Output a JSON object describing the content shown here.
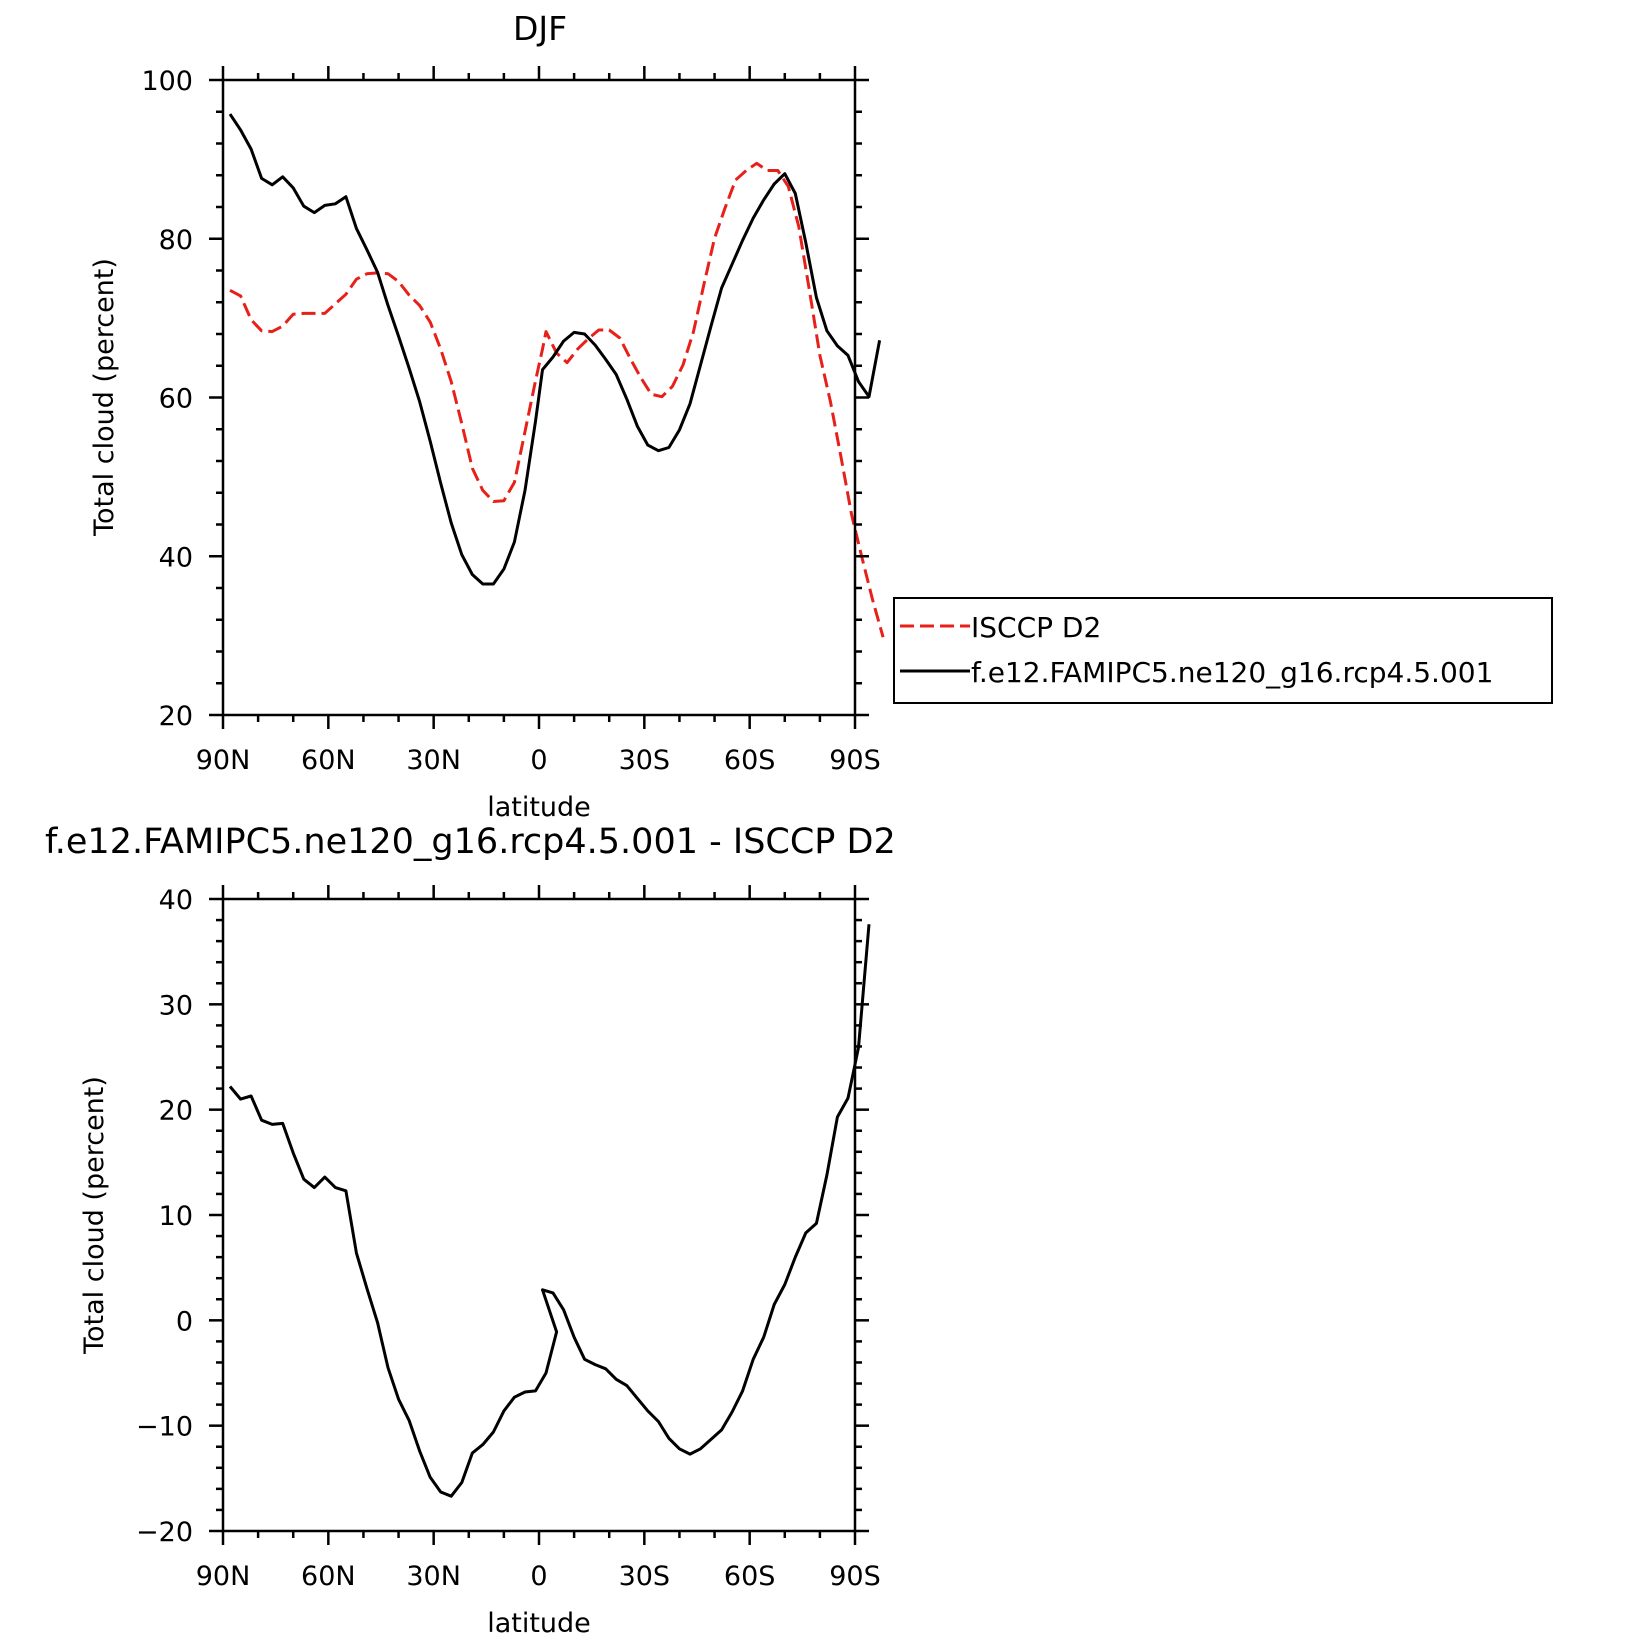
{
  "chart_data": [
    {
      "type": "line",
      "title": "DJF",
      "xlabel": "latitude",
      "ylabel": "Total cloud (percent)",
      "xlim": [
        90,
        -90
      ],
      "ylim": [
        20,
        100
      ],
      "x_ticks": [
        {
          "value": 90,
          "label": "90N"
        },
        {
          "value": 60,
          "label": "60N"
        },
        {
          "value": 30,
          "label": "30N"
        },
        {
          "value": 0,
          "label": "0"
        },
        {
          "value": -30,
          "label": "30S"
        },
        {
          "value": -60,
          "label": "60S"
        },
        {
          "value": -90,
          "label": "90S"
        }
      ],
      "y_ticks": [
        {
          "value": 20,
          "label": "20"
        },
        {
          "value": 40,
          "label": "40"
        },
        {
          "value": 60,
          "label": "60"
        },
        {
          "value": 80,
          "label": "80"
        },
        {
          "value": 100,
          "label": "100"
        }
      ],
      "grid": false,
      "legend_position": "right",
      "series": [
        {
          "name": "ISCCP D2",
          "color": "#e8201a",
          "dash": "dashed",
          "points": [
            [
              88,
              73.5
            ],
            [
              85,
              72.8
            ],
            [
              82,
              69.8
            ],
            [
              79,
              68.4
            ],
            [
              76,
              68.3
            ],
            [
              73,
              69
            ],
            [
              70,
              70.5
            ],
            [
              67,
              70.6
            ],
            [
              64,
              70.6
            ],
            [
              61,
              70.6
            ],
            [
              58,
              71.8
            ],
            [
              55,
              73
            ],
            [
              52,
              74.9
            ],
            [
              49,
              75.6
            ],
            [
              46,
              75.7
            ],
            [
              43,
              75.6
            ],
            [
              40,
              74.6
            ],
            [
              37,
              72.9
            ],
            [
              34,
              71.6
            ],
            [
              31,
              69.5
            ],
            [
              28,
              66.1
            ],
            [
              25,
              62
            ],
            [
              22,
              56.7
            ],
            [
              19,
              51.1
            ],
            [
              16,
              48.3
            ],
            [
              13,
              46.9
            ],
            [
              10,
              47
            ],
            [
              7,
              49.3
            ],
            [
              4,
              55.7
            ],
            [
              1,
              62.1
            ],
            [
              -1,
              66.1
            ],
            [
              -2,
              68.3
            ],
            [
              -5,
              65.6
            ],
            [
              -8,
              64.4
            ],
            [
              -11,
              66.1
            ],
            [
              -14,
              67.4
            ],
            [
              -17,
              68.5
            ],
            [
              -20,
              68.5
            ],
            [
              -23,
              67.5
            ],
            [
              -26,
              64.9
            ],
            [
              -29,
              62.5
            ],
            [
              -32,
              60.4
            ],
            [
              -35,
              60.1
            ],
            [
              -38,
              61.4
            ],
            [
              -41,
              64.1
            ],
            [
              -44,
              68.3
            ],
            [
              -47,
              74.3
            ],
            [
              -50,
              80.1
            ],
            [
              -53,
              83.9
            ],
            [
              -56,
              87.4
            ],
            [
              -59,
              88.6
            ],
            [
              -62,
              89.5
            ],
            [
              -65,
              88.6
            ],
            [
              -68,
              88.6
            ],
            [
              -71,
              86.6
            ],
            [
              -74,
              81.5
            ],
            [
              -77,
              73.5
            ],
            [
              -80,
              65.3
            ],
            [
              -83,
              59.5
            ],
            [
              -86,
              52.5
            ],
            [
              -89,
              45.3
            ],
            [
              -92,
              39.8
            ],
            [
              -95,
              34.5
            ],
            [
              -98,
              29.8
            ]
          ]
        },
        {
          "name": "f.e12.FAMIPC5.ne120_g16.rcp4.5.001",
          "color": "#000000",
          "dash": "solid",
          "points": [
            [
              88,
              95.7
            ],
            [
              85,
              93.7
            ],
            [
              82,
              91.3
            ],
            [
              79,
              87.6
            ],
            [
              76,
              86.8
            ],
            [
              73,
              87.8
            ],
            [
              70,
              86.4
            ],
            [
              67,
              84.1
            ],
            [
              64,
              83.3
            ],
            [
              61,
              84.2
            ],
            [
              58,
              84.4
            ],
            [
              55,
              85.3
            ],
            [
              52,
              81.3
            ],
            [
              49,
              78.6
            ],
            [
              46,
              75.8
            ],
            [
              43,
              71.6
            ],
            [
              40,
              67.7
            ],
            [
              37,
              63.7
            ],
            [
              34,
              59.5
            ],
            [
              31,
              54.5
            ],
            [
              28,
              49.2
            ],
            [
              25,
              44.2
            ],
            [
              22,
              40.2
            ],
            [
              19,
              37.7
            ],
            [
              16,
              36.5
            ],
            [
              13,
              36.5
            ],
            [
              10,
              38.4
            ],
            [
              7,
              41.8
            ],
            [
              4,
              48.3
            ],
            [
              1,
              57
            ],
            [
              -1,
              63.5
            ],
            [
              -4,
              65.1
            ],
            [
              -7,
              67.1
            ],
            [
              -10,
              68.2
            ],
            [
              -13,
              68
            ],
            [
              -16,
              66.6
            ],
            [
              -19,
              64.8
            ],
            [
              -22,
              62.9
            ],
            [
              -25,
              59.8
            ],
            [
              -28,
              56.4
            ],
            [
              -31,
              54
            ],
            [
              -34,
              53.3
            ],
            [
              -37,
              53.7
            ],
            [
              -40,
              55.9
            ],
            [
              -43,
              59.2
            ],
            [
              -46,
              64.1
            ],
            [
              -49,
              69
            ],
            [
              -52,
              73.8
            ],
            [
              -55,
              76.8
            ],
            [
              -58,
              79.8
            ],
            [
              -61,
              82.6
            ],
            [
              -64,
              84.9
            ],
            [
              -67,
              86.9
            ],
            [
              -70,
              88.2
            ],
            [
              -73,
              85.7
            ],
            [
              -76,
              79.5
            ],
            [
              -79,
              72.6
            ],
            [
              -82,
              68.4
            ],
            [
              -85,
              66.5
            ],
            [
              -88,
              65.3
            ],
            [
              -91,
              62
            ],
            [
              -94,
              60.1
            ],
            [
              -97,
              67.2
            ]
          ]
        }
      ]
    },
    {
      "type": "line",
      "title": "f.e12.FAMIPC5.ne120_g16.rcp4.5.001 - ISCCP D2",
      "xlabel": "latitude",
      "ylabel": "Total cloud (percent)",
      "xlim": [
        90,
        -90
      ],
      "ylim": [
        -20,
        40
      ],
      "x_ticks": [
        {
          "value": 90,
          "label": "90N"
        },
        {
          "value": 60,
          "label": "60N"
        },
        {
          "value": 30,
          "label": "30N"
        },
        {
          "value": 0,
          "label": "0"
        },
        {
          "value": -30,
          "label": "30S"
        },
        {
          "value": -60,
          "label": "60S"
        },
        {
          "value": -90,
          "label": "90S"
        }
      ],
      "y_ticks": [
        {
          "value": -20,
          "label": "−20"
        },
        {
          "value": -10,
          "label": "−10"
        },
        {
          "value": 0,
          "label": "0"
        },
        {
          "value": 10,
          "label": "10"
        },
        {
          "value": 20,
          "label": "20"
        },
        {
          "value": 30,
          "label": "30"
        },
        {
          "value": 40,
          "label": "40"
        }
      ],
      "grid": false,
      "series": [
        {
          "color": "#000000",
          "dash": "solid",
          "points": [
            [
              88,
              22.2
            ],
            [
              85,
              21
            ],
            [
              82,
              21.3
            ],
            [
              79,
              19
            ],
            [
              76,
              18.6
            ],
            [
              73,
              18.7
            ],
            [
              70,
              15.9
            ],
            [
              67,
              13.4
            ],
            [
              64,
              12.6
            ],
            [
              61,
              13.6
            ],
            [
              58,
              12.6
            ],
            [
              55,
              12.3
            ],
            [
              52,
              6.4
            ],
            [
              49,
              3
            ],
            [
              46,
              -0.2
            ],
            [
              43,
              -4.5
            ],
            [
              40,
              -7.5
            ],
            [
              37,
              -9.5
            ],
            [
              34,
              -12.4
            ],
            [
              31,
              -14.9
            ],
            [
              28,
              -16.3
            ],
            [
              25,
              -16.7
            ],
            [
              22,
              -15.4
            ],
            [
              19,
              -12.6
            ],
            [
              16,
              -11.8
            ],
            [
              13,
              -10.6
            ],
            [
              10,
              -8.6
            ],
            [
              7,
              -7.3
            ],
            [
              4,
              -6.8
            ],
            [
              1,
              -6.7
            ],
            [
              -2,
              -5
            ],
            [
              -5,
              -1.1
            ],
            [
              -1,
              2.9
            ],
            [
              -4,
              2.6
            ],
            [
              -7,
              1
            ],
            [
              -10,
              -1.6
            ],
            [
              -13,
              -3.7
            ],
            [
              -16,
              -4.2
            ],
            [
              -19,
              -4.6
            ],
            [
              -22,
              -5.6
            ],
            [
              -25,
              -6.2
            ],
            [
              -28,
              -7.4
            ],
            [
              -31,
              -8.6
            ],
            [
              -34,
              -9.6
            ],
            [
              -37,
              -11.2
            ],
            [
              -40,
              -12.2
            ],
            [
              -43,
              -12.7
            ],
            [
              -46,
              -12.2
            ],
            [
              -49,
              -11.3
            ],
            [
              -52,
              -10.4
            ],
            [
              -55,
              -8.7
            ],
            [
              -58,
              -6.7
            ],
            [
              -61,
              -3.7
            ],
            [
              -64,
              -1.6
            ],
            [
              -67,
              1.5
            ],
            [
              -70,
              3.4
            ],
            [
              -73,
              6
            ],
            [
              -76,
              8.3
            ],
            [
              -79,
              9.2
            ],
            [
              -82,
              13.8
            ],
            [
              -85,
              19.3
            ],
            [
              -88,
              21.1
            ],
            [
              -91,
              25.9
            ],
            [
              -94,
              37.6
            ]
          ]
        }
      ]
    }
  ]
}
